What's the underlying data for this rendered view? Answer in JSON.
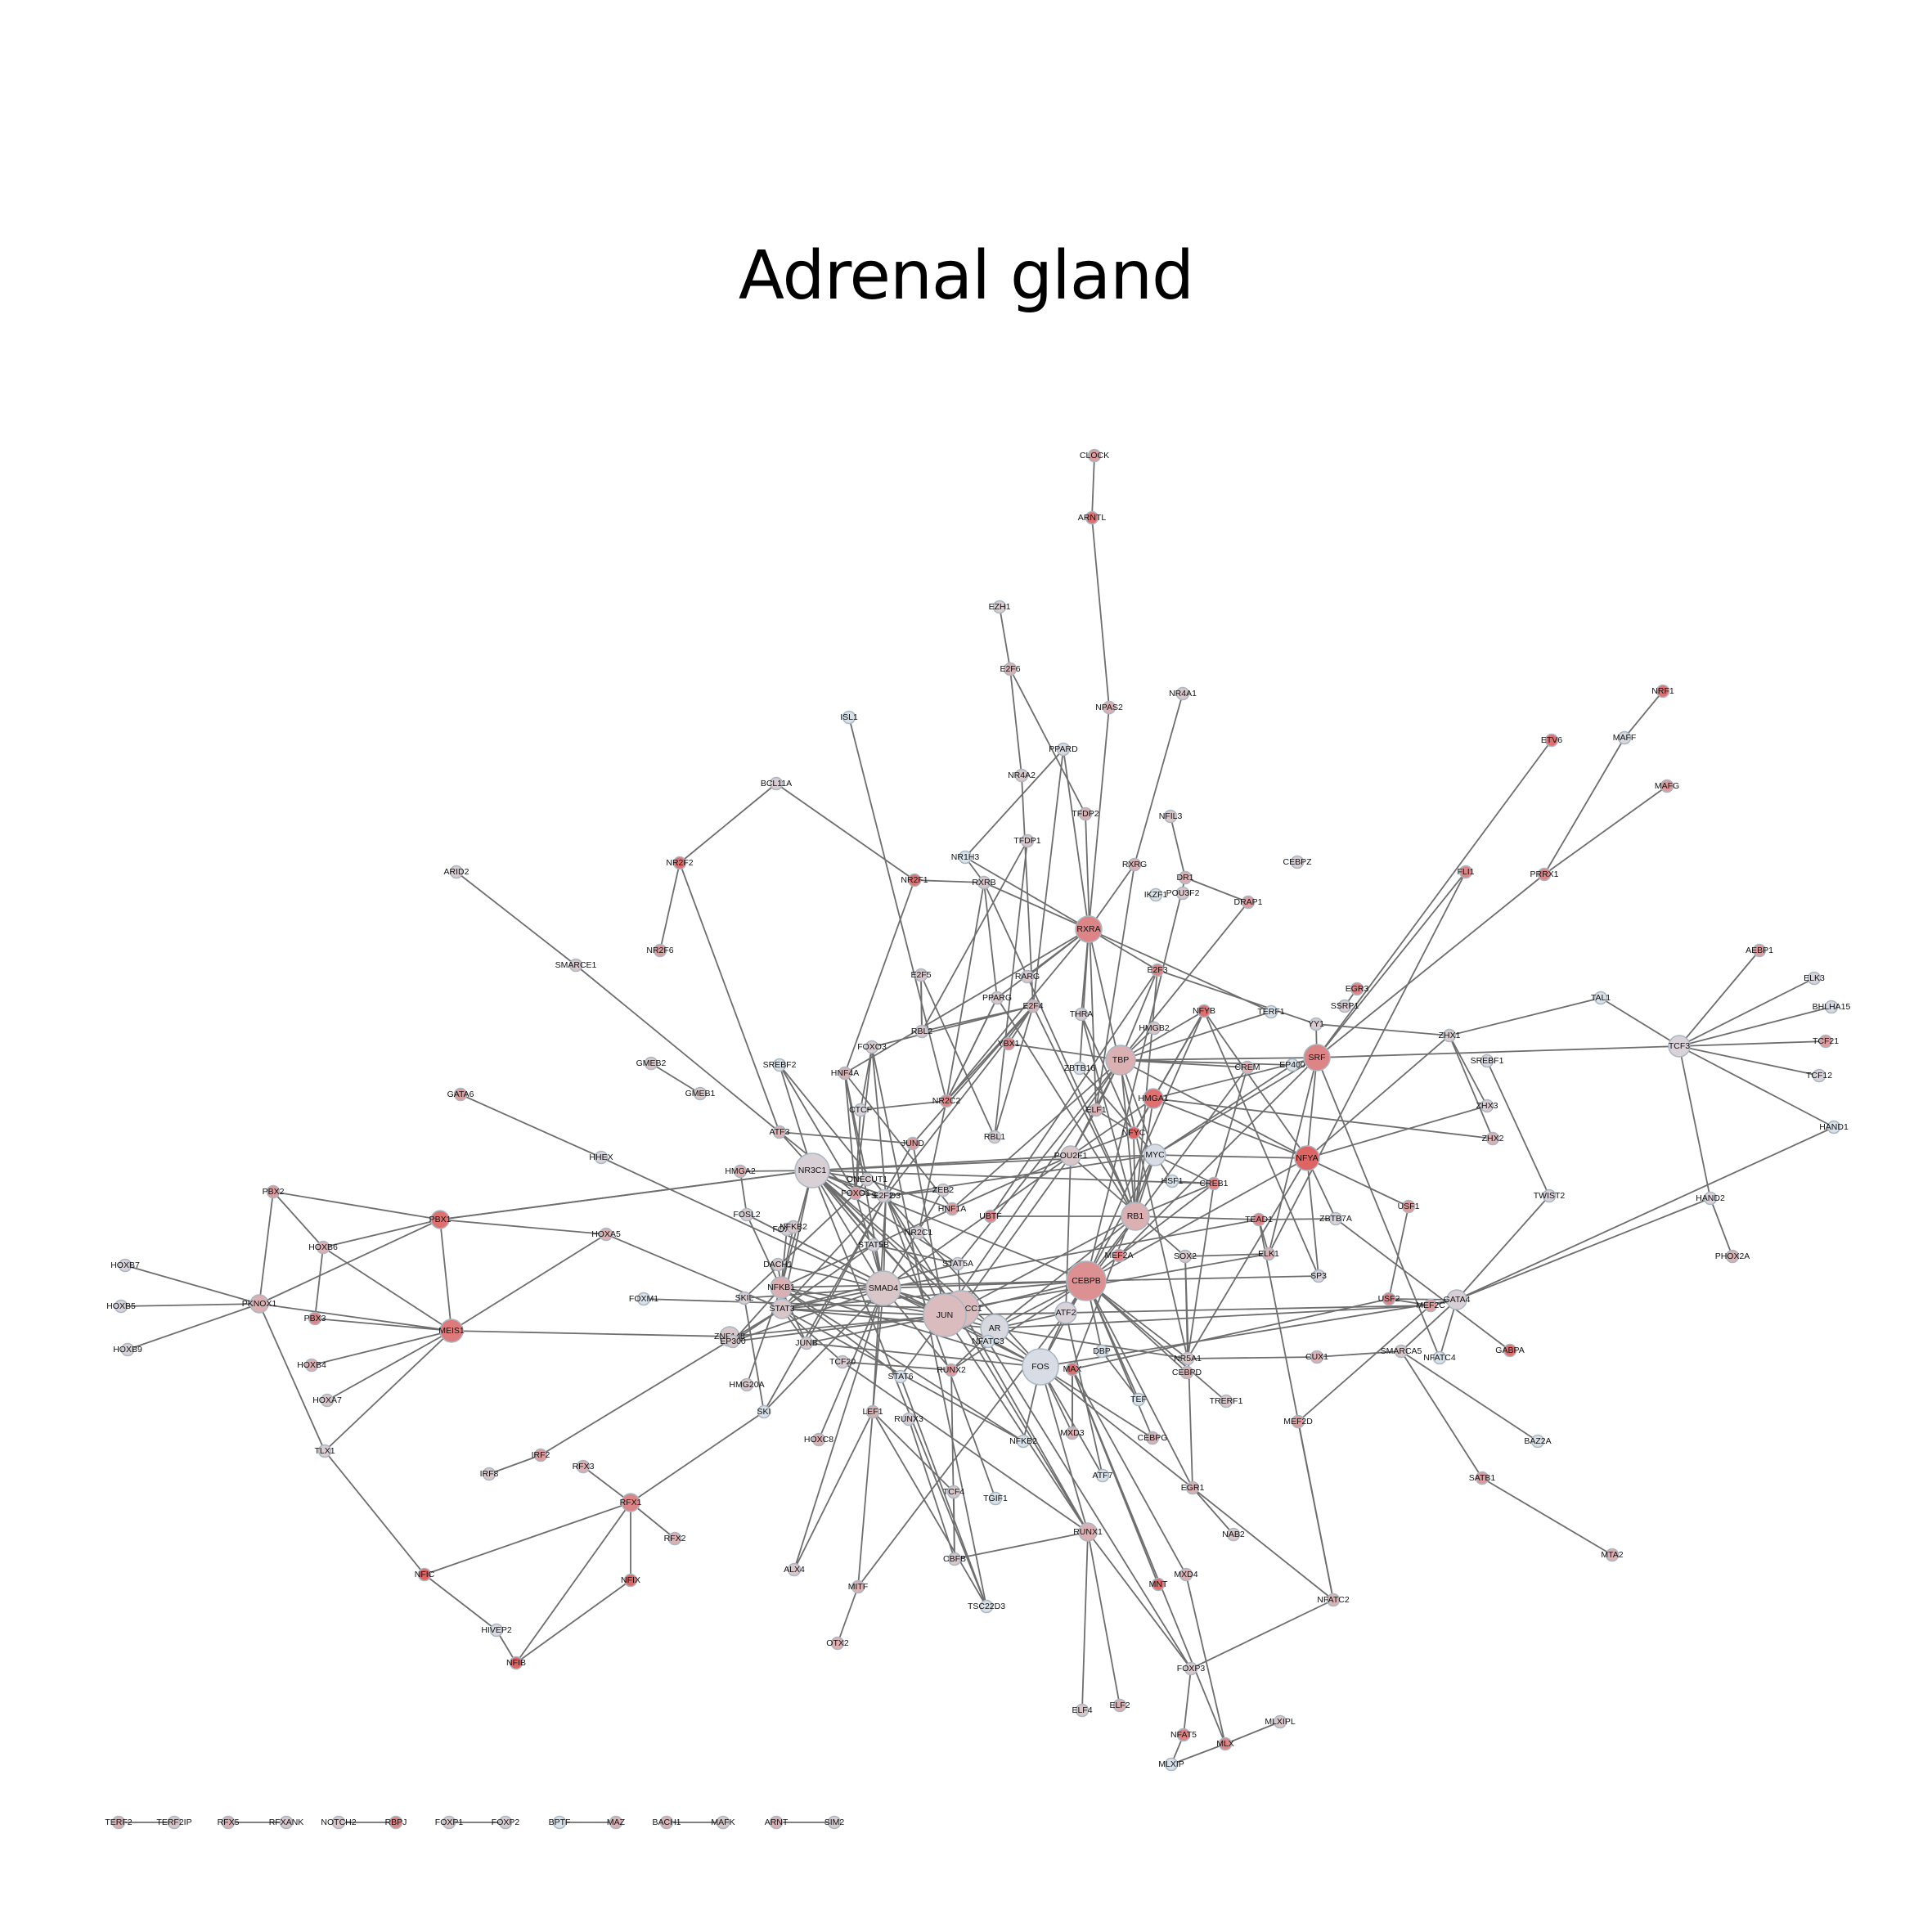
{
  "title": "Adrenal gland",
  "colors": {
    "edge": "#6e6e6e",
    "node_low": "#d8e6f0",
    "node_mid": "#d9c6c9",
    "node_high": "#e05a5a",
    "background": "#ffffff"
  },
  "nodes": [
    {
      "id": "CLOCK"
    },
    {
      "id": "ARNTL"
    },
    {
      "id": "EZH1"
    },
    {
      "id": "E2F6"
    },
    {
      "id": "NPAS2"
    },
    {
      "id": "NR4A1"
    },
    {
      "id": "ISL1"
    },
    {
      "id": "PPARD"
    },
    {
      "id": "NR4A2"
    },
    {
      "id": "BCL11A"
    },
    {
      "id": "TFDP2"
    },
    {
      "id": "NFIL3"
    },
    {
      "id": "TFDP1"
    },
    {
      "id": "NR1H3"
    },
    {
      "id": "RXRG"
    },
    {
      "id": "DR1"
    },
    {
      "id": "POU3F2"
    },
    {
      "id": "IKZF1"
    },
    {
      "id": "DRAP1"
    },
    {
      "id": "CEBPZ"
    },
    {
      "id": "NR2F2"
    },
    {
      "id": "ARID2"
    },
    {
      "id": "NR2F1"
    },
    {
      "id": "RXRB"
    },
    {
      "id": "RXRA"
    },
    {
      "id": "NR2F6"
    },
    {
      "id": "SMARCE1"
    },
    {
      "id": "E2F5"
    },
    {
      "id": "RARG"
    },
    {
      "id": "PPARG"
    },
    {
      "id": "E2F4"
    },
    {
      "id": "E2F3"
    },
    {
      "id": "THRA"
    },
    {
      "id": "NFYB"
    },
    {
      "id": "TERF1"
    },
    {
      "id": "EGR3"
    },
    {
      "id": "SSRP1"
    },
    {
      "id": "YY1"
    },
    {
      "id": "ZHX1"
    },
    {
      "id": "TAL1"
    },
    {
      "id": "TCF3"
    },
    {
      "id": "AEBP1"
    },
    {
      "id": "ELK3"
    },
    {
      "id": "BHLHA15"
    },
    {
      "id": "TCF21"
    },
    {
      "id": "TCF12"
    },
    {
      "id": "HAND1"
    },
    {
      "id": "HAND2"
    },
    {
      "id": "PHOX2A"
    },
    {
      "id": "NRF1"
    },
    {
      "id": "MAFF"
    },
    {
      "id": "MAFG"
    },
    {
      "id": "ETV6"
    },
    {
      "id": "FLI1"
    },
    {
      "id": "PRRX1"
    },
    {
      "id": "RBL2"
    },
    {
      "id": "YBX1"
    },
    {
      "id": "HMGB2"
    },
    {
      "id": "TBP"
    },
    {
      "id": "CREM"
    },
    {
      "id": "EP400"
    },
    {
      "id": "SRF"
    },
    {
      "id": "SREBF1"
    },
    {
      "id": "ZHX3"
    },
    {
      "id": "ZHX2"
    },
    {
      "id": "FOXO3"
    },
    {
      "id": "GMEB2"
    },
    {
      "id": "SREBF2"
    },
    {
      "id": "HNF4A"
    },
    {
      "id": "ZBTB16"
    },
    {
      "id": "GMEB1"
    },
    {
      "id": "GATA6"
    },
    {
      "id": "CTCF"
    },
    {
      "id": "NR2C2"
    },
    {
      "id": "HMGA1"
    },
    {
      "id": "ELF1"
    },
    {
      "id": "RBL1"
    },
    {
      "id": "ATF3"
    },
    {
      "id": "JUND"
    },
    {
      "id": "NFYC"
    },
    {
      "id": "MYC"
    },
    {
      "id": "NFYA"
    },
    {
      "id": "HHEX"
    },
    {
      "id": "NR3C1"
    },
    {
      "id": "POU2F1"
    },
    {
      "id": "HMGA2"
    },
    {
      "id": "ONECUT1"
    },
    {
      "id": "SMAD3"
    },
    {
      "id": "E2F2"
    },
    {
      "id": "HSF1"
    },
    {
      "id": "CREB1"
    },
    {
      "id": "TWIST2"
    },
    {
      "id": "PBX2"
    },
    {
      "id": "PBX1"
    },
    {
      "id": "FOXO1"
    },
    {
      "id": "ZEB2"
    },
    {
      "id": "HNF1A"
    },
    {
      "id": "RB1"
    },
    {
      "id": "TEAD1"
    },
    {
      "id": "USF1"
    },
    {
      "id": "ZBTB7A"
    },
    {
      "id": "HOXB6"
    },
    {
      "id": "HOXA5"
    },
    {
      "id": "FOSL2"
    },
    {
      "id": "FOXN3"
    },
    {
      "id": "NFKB2"
    },
    {
      "id": "UBTF"
    },
    {
      "id": "NR2C1"
    },
    {
      "id": "STAT5B"
    },
    {
      "id": "MEF2A"
    },
    {
      "id": "SOX2"
    },
    {
      "id": "ELK1"
    },
    {
      "id": "HOXB7"
    },
    {
      "id": "DACH1"
    },
    {
      "id": "SP3"
    },
    {
      "id": "HOXB5"
    },
    {
      "id": "PKNOX1"
    },
    {
      "id": "NFKB1"
    },
    {
      "id": "STAT5A"
    },
    {
      "id": "CEBPB"
    },
    {
      "id": "GATA4"
    },
    {
      "id": "USF2"
    },
    {
      "id": "MEF2C"
    },
    {
      "id": "FOXM1"
    },
    {
      "id": "SKIL"
    },
    {
      "id": "SMAD4"
    },
    {
      "id": "STAT3"
    },
    {
      "id": "SMARCC1"
    },
    {
      "id": "JUN"
    },
    {
      "id": "ATF2"
    },
    {
      "id": "HOXB9"
    },
    {
      "id": "PBX3"
    },
    {
      "id": "MEIS1"
    },
    {
      "id": "ZNF148"
    },
    {
      "id": "EP300"
    },
    {
      "id": "JUNB"
    },
    {
      "id": "AR"
    },
    {
      "id": "NFATC3"
    },
    {
      "id": "DBP"
    },
    {
      "id": "NR5A1"
    },
    {
      "id": "SMARCA5"
    },
    {
      "id": "CUX1"
    },
    {
      "id": "NFATC4"
    },
    {
      "id": "GABPA"
    },
    {
      "id": "HOXB4"
    },
    {
      "id": "TCF20"
    },
    {
      "id": "FOS"
    },
    {
      "id": "MAX"
    },
    {
      "id": "CEBPD"
    },
    {
      "id": "HOXA7"
    },
    {
      "id": "HMG20A"
    },
    {
      "id": "STAT6"
    },
    {
      "id": "RUNX2"
    },
    {
      "id": "TEF"
    },
    {
      "id": "TRERF1"
    },
    {
      "id": "SKI"
    },
    {
      "id": "LEF1"
    },
    {
      "id": "RUNX3"
    },
    {
      "id": "NFKB2B"
    },
    {
      "id": "MXD3"
    },
    {
      "id": "CEBPG"
    },
    {
      "id": "MEF2D"
    },
    {
      "id": "BAZ2A"
    },
    {
      "id": "HOXC8"
    },
    {
      "id": "TLX1"
    },
    {
      "id": "IRF2"
    },
    {
      "id": "IRF8"
    },
    {
      "id": "RFX3"
    },
    {
      "id": "ATF7"
    },
    {
      "id": "EGR1"
    },
    {
      "id": "SATB1"
    },
    {
      "id": "RFX1"
    },
    {
      "id": "TCF4"
    },
    {
      "id": "TGIF1"
    },
    {
      "id": "NAB2"
    },
    {
      "id": "MTA2"
    },
    {
      "id": "RFX2"
    },
    {
      "id": "RUNX1"
    },
    {
      "id": "NFIC"
    },
    {
      "id": "NFIX"
    },
    {
      "id": "CBFB"
    },
    {
      "id": "ALX4"
    },
    {
      "id": "MNT"
    },
    {
      "id": "MXD4"
    },
    {
      "id": "NFATC2"
    },
    {
      "id": "MITF"
    },
    {
      "id": "TSC22D3"
    },
    {
      "id": "HIVEP2"
    },
    {
      "id": "OTX2"
    },
    {
      "id": "NFIB"
    },
    {
      "id": "FOXP3"
    },
    {
      "id": "ELF4"
    },
    {
      "id": "ELF2"
    },
    {
      "id": "MLXIPL"
    },
    {
      "id": "NFAT5"
    },
    {
      "id": "MLX"
    },
    {
      "id": "MLXIP"
    },
    {
      "id": "TERF2"
    },
    {
      "id": "TERF2IP"
    },
    {
      "id": "RFX5"
    },
    {
      "id": "RFXANK"
    },
    {
      "id": "NOTCH2"
    },
    {
      "id": "RBPJ"
    },
    {
      "id": "FOXP1"
    },
    {
      "id": "FOXP2"
    },
    {
      "id": "BPTF"
    },
    {
      "id": "MAZ"
    },
    {
      "id": "BACH1"
    },
    {
      "id": "MAFK"
    },
    {
      "id": "ARNT"
    },
    {
      "id": "SIM2"
    }
  ],
  "labels": {
    "NFKB2B": "NFKB2"
  }
}
